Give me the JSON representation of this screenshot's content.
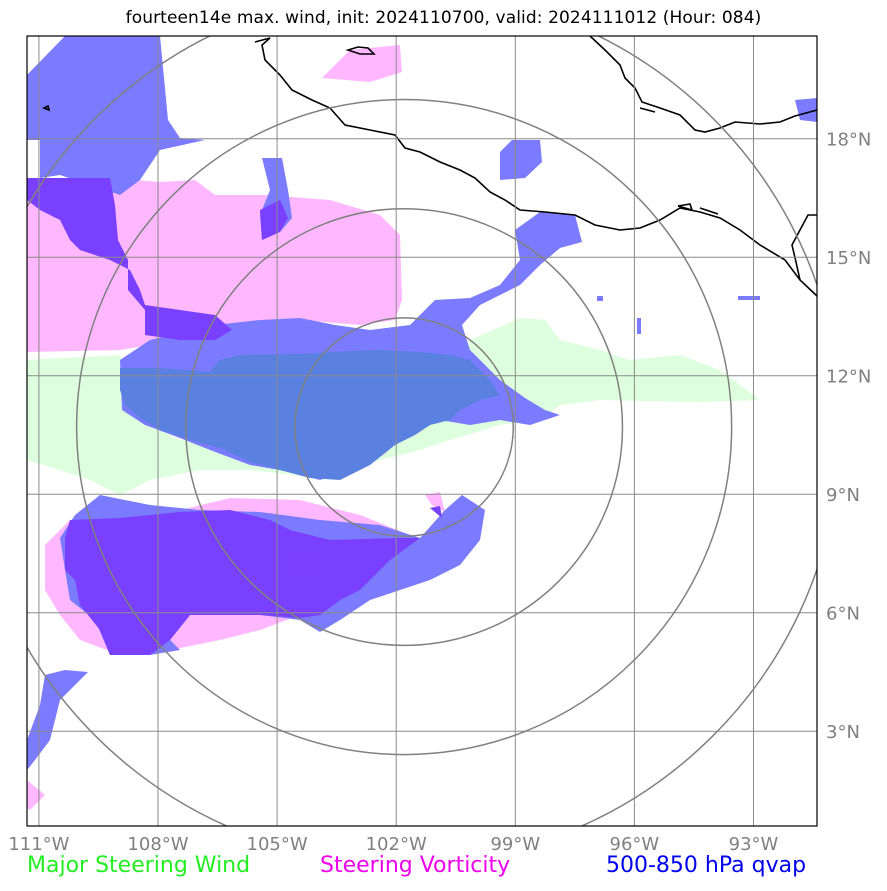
{
  "title": "fourteen14e max. wind, init: 2024110700, valid: 2024111012 (Hour: 084)",
  "lat_labels": [
    "18°N",
    "15°N",
    "12°N",
    "9°N",
    "6°N",
    "3°N"
  ],
  "lon_labels": [
    "111°W",
    "108°W",
    "105°W",
    "102°W",
    "99°W",
    "96°W",
    "93°W"
  ],
  "legend": {
    "steering_wind": "Major Steering Wind",
    "steering_vorticity": "Steering Vorticity",
    "qvap": "500-850 hPa qvap"
  },
  "colors": {
    "steering_wind": "#22ee22",
    "steering_vorticity": "#ee00ee",
    "qvap": "#0000ee",
    "qvap_fill": "#7b7bff",
    "vort_fill": "#ffb8ff",
    "wind_fill": "#ddffdd",
    "overlap_fill": "#7a40ff",
    "core_fill": "#5a80e0"
  },
  "map": {
    "lon_range": [
      -111.3,
      -91.4
    ],
    "lat_range": [
      0.6,
      20.6
    ],
    "range_ring_center": {
      "lon": -101.8,
      "lat": 10.7
    },
    "range_ring_step_deg": 2.75,
    "range_ring_count": 4
  }
}
